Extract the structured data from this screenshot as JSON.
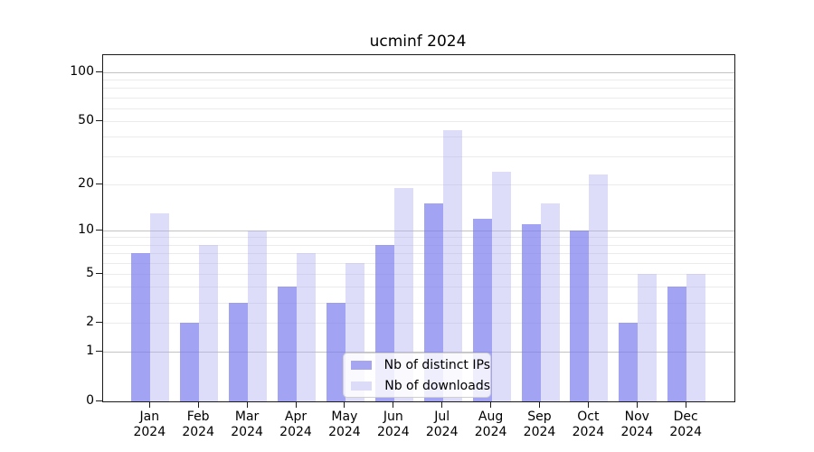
{
  "chart_data": {
    "type": "bar",
    "title": "ucminf 2024",
    "months": [
      "Jan",
      "Feb",
      "Mar",
      "Apr",
      "May",
      "Jun",
      "Jul",
      "Aug",
      "Sep",
      "Oct",
      "Nov",
      "Dec"
    ],
    "year": "2024",
    "categories": [
      "Jan 2024",
      "Feb 2024",
      "Mar 2024",
      "Apr 2024",
      "May 2024",
      "Jun 2024",
      "Jul 2024",
      "Aug 2024",
      "Sep 2024",
      "Oct 2024",
      "Nov 2024",
      "Dec 2024"
    ],
    "series": [
      {
        "name": "Nb of distinct IPs",
        "values": [
          7,
          2,
          3,
          4,
          3,
          8,
          15,
          12,
          11,
          10,
          2,
          4
        ],
        "color_fill": "rgba(124,124,238,0.70)",
        "color_solid": "#a5a5f2"
      },
      {
        "name": "Nb of downloads",
        "values": [
          13,
          8,
          10,
          7,
          6,
          19,
          44,
          24,
          15,
          23,
          5,
          5
        ],
        "color_fill": "rgba(173,173,240,0.42)",
        "color_solid": "#dcdcf8"
      }
    ],
    "y_axis": {
      "scale": "log1p",
      "ticks": [
        {
          "v": 0,
          "label": "0"
        },
        {
          "v": 1,
          "label": "1"
        },
        {
          "v": 2,
          "label": "2"
        },
        {
          "v": 5,
          "label": "5"
        },
        {
          "v": 10,
          "label": "10"
        },
        {
          "v": 20,
          "label": "20"
        },
        {
          "v": 50,
          "label": "50"
        },
        {
          "v": 100,
          "label": "100"
        }
      ],
      "top_value": 130
    },
    "gridlines": {
      "major": [
        1,
        10,
        100
      ],
      "minor": [
        2,
        3,
        4,
        5,
        6,
        7,
        8,
        9,
        20,
        30,
        40,
        50,
        60,
        70,
        80,
        90
      ]
    },
    "legend": {
      "position": "lower center",
      "entries": [
        "Nb of distinct IPs",
        "Nb of downloads"
      ]
    },
    "colors": {
      "axis": "#1a1a1a",
      "grid_major": "#c3c3c3",
      "grid_minor": "#ebebeb",
      "text": "#000000",
      "background": "#ffffff"
    },
    "grid": "on",
    "xlabel": "",
    "ylabel": ""
  }
}
